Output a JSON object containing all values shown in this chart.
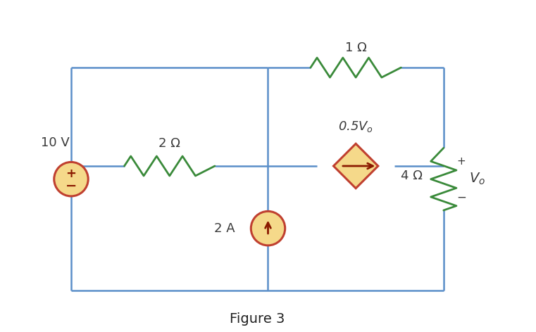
{
  "figure_title": "Figure 3",
  "bg_color": "#ffffff",
  "wire_color": "#5b8fc9",
  "resistor_color": "#3a8a3a",
  "source_face_color": "#f5d98a",
  "source_edge_color": "#c04030",
  "dep_source_face": "#f5d98a",
  "dep_source_edge": "#c04030",
  "label_color": "#3a3a3a",
  "wire_lw": 1.8,
  "resistor_lw": 2.0,
  "xl": 0.13,
  "xm": 0.5,
  "xr": 0.83,
  "yt": 0.8,
  "ym": 0.5,
  "yb": 0.12,
  "vs_r": 0.052,
  "cs_r": 0.052,
  "dep_size": 0.068
}
